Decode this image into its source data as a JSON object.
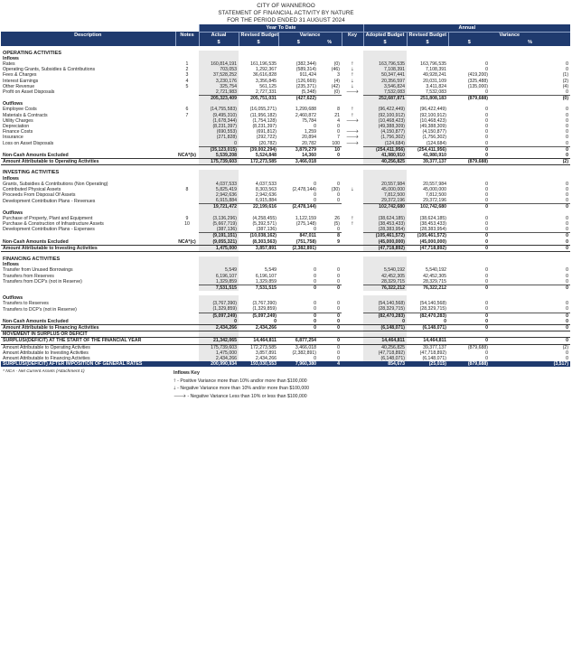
{
  "header": {
    "org": "CITY OF WANNEROO",
    "title": "STATEMENT OF FINANCIAL ACTIVITY BY NATURE",
    "period": "FOR THE PERIOD ENDED 31 AUGUST 2024"
  },
  "columns": {
    "ytd": "Year To Date",
    "annual": "Annual",
    "description": "Description",
    "notes": "Notes",
    "actual": "Actual",
    "revised_budget": "Revised Budget",
    "variance": "Variance",
    "adopted_budget": "Adopted Budget",
    "key": "Key",
    "dollar": "$",
    "percent": "%"
  },
  "rows": [
    {
      "t": "sp"
    },
    {
      "t": "sec",
      "d": "OPERATING ACTIVITIES"
    },
    {
      "t": "grp",
      "d": "Inflows"
    },
    {
      "t": "r",
      "d": "Rates",
      "nt": "1",
      "a": "160,814,191",
      "rb": "161,196,535",
      "v": "(382,344)",
      "p": "(0)",
      "k": "up",
      "ab": "163,796,535",
      "rab": "163,796,535",
      "av": "0",
      "ap": "0"
    },
    {
      "t": "r",
      "d": "Operating Grants, Subsidies & Contributions",
      "nt": "2",
      "a": "703,053",
      "rb": "1,292,367",
      "v": "(589,314)",
      "p": "(46)",
      "k": "down",
      "ab": "7,108,391",
      "rab": "7,108,391",
      "av": "0",
      "ap": "0"
    },
    {
      "t": "r",
      "d": "Fees & Charges",
      "nt": "3",
      "a": "37,528,252",
      "rb": "36,616,828",
      "v": "911,424",
      "p": "3",
      "k": "up",
      "ab": "50,347,441",
      "rab": "49,928,241",
      "av": "(419,200)",
      "ap": "(1)"
    },
    {
      "t": "r",
      "d": "Interest Earnings",
      "nt": "4",
      "a": "3,230,176",
      "rb": "3,356,845",
      "v": "(126,669)",
      "p": "(4)",
      "k": "down",
      "ab": "20,356,597",
      "rab": "20,031,109",
      "av": "(325,488)",
      "ap": "(2)"
    },
    {
      "t": "r",
      "d": "Other Revenue",
      "nt": "5",
      "a": "325,754",
      "rb": "561,125",
      "v": "(235,371)",
      "p": "(42)",
      "k": "down",
      "ab": "3,546,824",
      "rab": "3,411,824",
      "av": "(135,000)",
      "ap": "(4)"
    },
    {
      "t": "r",
      "d": "Profit on Asset Disposals",
      "nt": "",
      "a": "2,721,983",
      "rb": "2,727,331",
      "v": "(5,348)",
      "p": "(0)",
      "k": "right",
      "ab": "7,532,083",
      "rab": "7,532,083",
      "av": "0",
      "ap": "0"
    },
    {
      "t": "sub",
      "a": "205,323,409",
      "rb": "205,751,031",
      "v": "(427,622)",
      "p": "",
      "k": "",
      "ab": "252,687,871",
      "rab": "251,808,183",
      "av": "(879,688)",
      "ap": "(0)"
    },
    {
      "t": "grp",
      "d": "Outflows"
    },
    {
      "t": "r",
      "d": "Employee Costs",
      "nt": "6",
      "a": "(14,755,583)",
      "rb": "(16,055,271)",
      "v": "1,299,688",
      "p": "8",
      "k": "up",
      "ab": "(96,422,449)",
      "rab": "(96,422,449)",
      "av": "0",
      "ap": "0"
    },
    {
      "t": "r",
      "d": "Materials & Contracts",
      "nt": "7",
      "a": "(9,495,310)",
      "rb": "(11,956,182)",
      "v": "2,460,872",
      "p": "21",
      "k": "up",
      "ab": "(92,100,912)",
      "rab": "(92,100,912)",
      "av": "0",
      "ap": "0"
    },
    {
      "t": "r",
      "d": "Utility Charges",
      "nt": "",
      "a": "(1,678,344)",
      "rb": "(1,754,128)",
      "v": "75,784",
      "p": "4",
      "k": "right",
      "ab": "(10,468,423)",
      "rab": "(10,468,423)",
      "av": "0",
      "ap": "0"
    },
    {
      "t": "r",
      "d": "Depreciation",
      "nt": "",
      "a": "(8,231,397)",
      "rb": "(8,231,397)",
      "v": "0",
      "p": "0",
      "k": "",
      "ab": "(49,388,309)",
      "rab": "(49,388,309)",
      "av": "0",
      "ap": "0"
    },
    {
      "t": "r",
      "d": "Finance Costs",
      "nt": "",
      "a": "(690,553)",
      "rb": "(691,812)",
      "v": "1,259",
      "p": "0",
      "k": "right",
      "ab": "(4,150,877)",
      "rab": "(4,150,877)",
      "av": "0",
      "ap": "0"
    },
    {
      "t": "r",
      "d": "Insurance",
      "nt": "",
      "a": "(271,828)",
      "rb": "(292,722)",
      "v": "20,894",
      "p": "7",
      "k": "right",
      "ab": "(1,756,302)",
      "rab": "(1,756,302)",
      "av": "0",
      "ap": "0"
    },
    {
      "t": "r",
      "d": "Loss on Asset Disposals",
      "nt": "",
      "a": "0",
      "rb": "(20,782)",
      "v": "20,782",
      "p": "100",
      "k": "right",
      "ab": "(124,684)",
      "rab": "(124,684)",
      "av": "0",
      "ap": "0"
    },
    {
      "t": "sub",
      "a": "(35,123,015)",
      "rb": "(39,002,294)",
      "v": "3,879,279",
      "p": "10",
      "k": "",
      "ab": "(254,411,956)",
      "rab": "(254,411,956)",
      "av": "0",
      "ap": "0"
    },
    {
      "t": "nc",
      "d": "Non-Cash Amounts Excluded",
      "nt": "NCA*(b)",
      "a": "5,539,208",
      "rb": "5,524,848",
      "v": "14,360",
      "p": "0",
      "k": "",
      "ab": "41,980,910",
      "rab": "41,980,910",
      "av": "0",
      "ap": "0"
    },
    {
      "t": "amt",
      "d": "Amount Attributable to Operating Activities",
      "a": "175,739,603",
      "rb": "172,273,585",
      "v": "3,466,018",
      "p": "",
      "k": "",
      "ab": "40,256,825",
      "rab": "39,377,137",
      "av": "(879,688)",
      "ap": "(2)"
    },
    {
      "t": "sp"
    },
    {
      "t": "sec",
      "d": "INVESTING ACTIVITIES"
    },
    {
      "t": "grp",
      "d": "Inflows"
    },
    {
      "t": "r",
      "d": "Grants, Subsidies & Contributions (Non Operating)",
      "nt": "",
      "a": "4,037,533",
      "rb": "4,037,533",
      "v": "0",
      "p": "0",
      "k": "",
      "ab": "20,557,984",
      "rab": "20,557,984",
      "av": "0",
      "ap": "0"
    },
    {
      "t": "r",
      "d": "Contributed Physical Assets",
      "nt": "8",
      "a": "5,825,419",
      "rb": "8,303,563",
      "v": "(2,478,144)",
      "p": "(30)",
      "k": "down",
      "ab": "45,000,000",
      "rab": "45,000,000",
      "av": "0",
      "ap": "0"
    },
    {
      "t": "r",
      "d": "Proceeds From Disposal Of Assets",
      "nt": "",
      "a": "2,942,636",
      "rb": "2,942,636",
      "v": "0",
      "p": "0",
      "k": "",
      "ab": "7,812,500",
      "rab": "7,812,500",
      "av": "0",
      "ap": "0"
    },
    {
      "t": "r",
      "d": "Development Contribution Plans - Revenues",
      "nt": "",
      "a": "6,915,884",
      "rb": "6,915,884",
      "v": "0",
      "p": "0",
      "k": "",
      "ab": "29,372,196",
      "rab": "29,372,196",
      "av": "0",
      "ap": "0"
    },
    {
      "t": "sub",
      "a": "19,721,472",
      "rb": "22,199,616",
      "v": "(2,478,144)",
      "p": "",
      "k": "",
      "ab": "102,742,680",
      "rab": "102,742,680",
      "av": "0",
      "ap": "0"
    },
    {
      "t": "grp",
      "d": "Outflows"
    },
    {
      "t": "r",
      "d": "Purchase of Property, Plant and Equipment",
      "nt": "9",
      "a": "(3,136,296)",
      "rb": "(4,258,455)",
      "v": "1,122,159",
      "p": "26",
      "k": "up",
      "ab": "(38,624,185)",
      "rab": "(38,624,185)",
      "av": "0",
      "ap": "0"
    },
    {
      "t": "r",
      "d": "Purchase & Construction of Infrastructure Assets",
      "nt": "10",
      "a": "(5,667,719)",
      "rb": "(5,392,571)",
      "v": "(275,148)",
      "p": "(5)",
      "k": "up",
      "ab": "(38,453,433)",
      "rab": "(38,453,433)",
      "av": "0",
      "ap": "0"
    },
    {
      "t": "r",
      "d": "Development Contribution Plans - Expenses",
      "nt": "",
      "a": "(387,136)",
      "rb": "(387,136)",
      "v": "0",
      "p": "0",
      "k": "",
      "ab": "(28,383,954)",
      "rab": "(28,383,954)",
      "av": "0",
      "ap": "0"
    },
    {
      "t": "sub",
      "a": "(9,191,151)",
      "rb": "(10,038,162)",
      "v": "847,011",
      "p": "8",
      "k": "",
      "ab": "(105,461,572)",
      "rab": "(105,461,572)",
      "av": "0",
      "ap": "0"
    },
    {
      "t": "nc",
      "d": "Non-Cash Amounts Excluded",
      "nt": "NCA*(c)",
      "a": "(9,055,321)",
      "rb": "(8,303,563)",
      "v": "(751,758)",
      "p": "9",
      "k": "",
      "ab": "(45,000,000)",
      "rab": "(45,000,000)",
      "av": "0",
      "ap": "0"
    },
    {
      "t": "amt",
      "d": "Amount Attributable to Investing Activities",
      "a": "1,475,000",
      "rb": "3,857,891",
      "v": "(2,382,891)",
      "p": "",
      "k": "",
      "ab": "(47,718,892)",
      "rab": "(47,718,892)",
      "av": "0",
      "ap": "0"
    },
    {
      "t": "sp"
    },
    {
      "t": "sec",
      "d": "FINANCING ACTIVITIES"
    },
    {
      "t": "grp",
      "d": "Inflows"
    },
    {
      "t": "r",
      "d": "Transfer from Unused Borrowings",
      "nt": "",
      "a": "5,549",
      "rb": "5,549",
      "v": "0",
      "p": "0",
      "k": "",
      "ab": "5,540,192",
      "rab": "5,540,192",
      "av": "0",
      "ap": "0"
    },
    {
      "t": "r",
      "d": "Transfers from Reserves",
      "nt": "",
      "a": "6,196,107",
      "rb": "6,196,107",
      "v": "0",
      "p": "0",
      "k": "",
      "ab": "42,452,305",
      "rab": "42,452,305",
      "av": "0",
      "ap": "0"
    },
    {
      "t": "r",
      "d": "Transfers from DCP's (not in Reserve)",
      "nt": "",
      "a": "1,329,859",
      "rb": "1,329,859",
      "v": "0",
      "p": "0",
      "k": "",
      "ab": "28,329,715",
      "rab": "28,329,715",
      "av": "0",
      "ap": "0"
    },
    {
      "t": "sub",
      "a": "7,531,515",
      "rb": "7,531,515",
      "v": "0",
      "p": "0",
      "k": "",
      "ab": "76,322,212",
      "rab": "76,322,212",
      "av": "0",
      "ap": "0"
    },
    {
      "t": "sp"
    },
    {
      "t": "grp",
      "d": "Outflows"
    },
    {
      "t": "r",
      "d": "Transfers to Reserves",
      "nt": "",
      "a": "(3,767,390)",
      "rb": "(3,767,390)",
      "v": "0",
      "p": "0",
      "k": "",
      "ab": "(54,140,568)",
      "rab": "(54,140,568)",
      "av": "0",
      "ap": "0"
    },
    {
      "t": "r",
      "d": "Transfers to DCP's (not in Reserve)",
      "nt": "",
      "a": "(1,329,859)",
      "rb": "(1,329,859)",
      "v": "0",
      "p": "0",
      "k": "",
      "ab": "(28,329,715)",
      "rab": "(28,329,715)",
      "av": "0",
      "ap": "0"
    },
    {
      "t": "sub",
      "a": "(5,097,249)",
      "rb": "(5,097,249)",
      "v": "0",
      "p": "0",
      "k": "",
      "ab": "(82,470,283)",
      "rab": "(82,470,283)",
      "av": "0",
      "ap": "0"
    },
    {
      "t": "nc",
      "d": "Non-Cash Amounts Excluded",
      "nt": "",
      "a": "0",
      "rb": "0",
      "v": "0",
      "p": "0",
      "k": "",
      "ab": "0",
      "rab": "0",
      "av": "0",
      "ap": "0"
    },
    {
      "t": "amt",
      "d": "Amount Attributable to Financing Activities",
      "a": "2,434,266",
      "rb": "2,434,266",
      "v": "0",
      "p": "0",
      "k": "",
      "ab": "(6,148,071)",
      "rab": "(6,148,071)",
      "av": "0",
      "ap": "0"
    },
    {
      "t": "mv",
      "d": "MOVEMENT IN SURPLUS OR DEFICIT"
    },
    {
      "t": "sy",
      "d": "SURPLUS/(DEFICIT) AT THE START OF THE FINANCIAL YEAR",
      "a": "21,342,065",
      "rb": "14,464,811",
      "v": "6,877,254",
      "p": "0",
      "k": "",
      "ab": "14,464,811",
      "rab": "14,464,811",
      "av": "0",
      "ap": "0"
    },
    {
      "t": "r",
      "d": "Amount Attributable to Operating Activities",
      "nt": "",
      "a": "175,739,603",
      "rb": "172,273,585",
      "v": "3,466,018",
      "p": "0",
      "k": "",
      "ab": "40,256,825",
      "rab": "39,377,137",
      "av": "(879,688)",
      "ap": "(2)"
    },
    {
      "t": "r",
      "d": "Amount Attributable to Investing Activities",
      "nt": "",
      "a": "1,475,000",
      "rb": "3,857,891",
      "v": "(2,382,891)",
      "p": "0",
      "k": "",
      "ab": "(47,718,892)",
      "rab": "(47,718,892)",
      "av": "0",
      "ap": "0"
    },
    {
      "t": "r",
      "d": "Amount Attributable to Financing Activities",
      "nt": "",
      "a": "2,434,266",
      "rb": "2,434,266",
      "v": "0",
      "p": "0",
      "k": "",
      "ab": "(6,148,071)",
      "rab": "(6,148,071)",
      "av": "0",
      "ap": "0"
    },
    {
      "t": "fin",
      "d": "SURPLUS/(DEFICIT) AFTER IMPOSITION OF GENERAL RATES",
      "a": "200,990,934",
      "rb": "193,030,553",
      "v": "7,960,380",
      "p": "4",
      "k": "",
      "ab": "854,673",
      "rab": "(25,015)",
      "av": "(879,688)",
      "ap": "(3,517)"
    }
  ],
  "footnote": "* NCA - Net Current Assets (Attachment 1)",
  "legend": {
    "title": "Inflows Key",
    "items": [
      {
        "icon": "up",
        "text": "- Positive Variance more than 10% and/or more than $100,000"
      },
      {
        "icon": "down",
        "text": "- Negative Variance more than 10% and/or more than $100,000"
      },
      {
        "icon": "right",
        "text": "- Negative Variance Less than 10% or less than $100,000"
      }
    ]
  }
}
